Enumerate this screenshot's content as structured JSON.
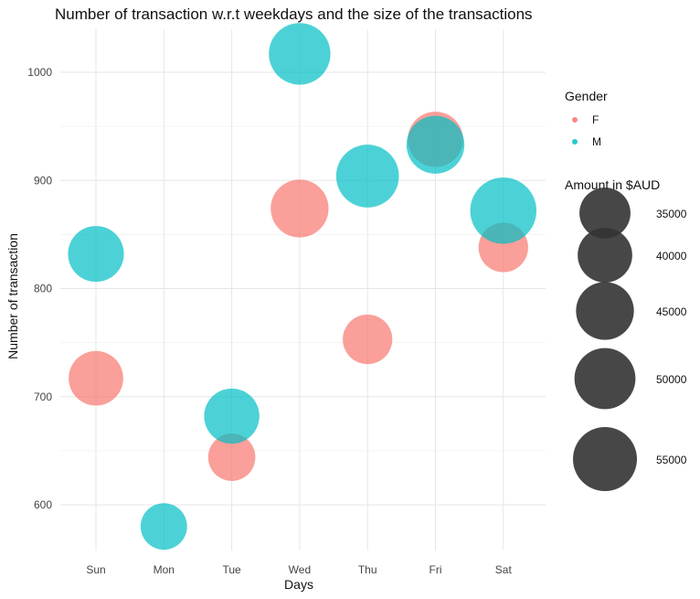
{
  "chart_data": {
    "type": "scatter",
    "title": "Number of transaction w.r.t weekdays and the size of the transactions",
    "xlabel": "Days",
    "ylabel": "Number of transaction",
    "categories": [
      "Sun",
      "Mon",
      "Tue",
      "Wed",
      "Thu",
      "Fri",
      "Sat"
    ],
    "yticks": [
      600,
      700,
      800,
      900,
      1000
    ],
    "ylim": [
      553,
      1037
    ],
    "grid": true,
    "series": [
      {
        "name": "F",
        "color": "#F8766D",
        "points": [
          {
            "x": "Sun",
            "y": 717,
            "size": 40000
          },
          {
            "x": "Tue",
            "y": 644,
            "size": 30000
          },
          {
            "x": "Wed",
            "y": 874,
            "size": 45000
          },
          {
            "x": "Thu",
            "y": 753,
            "size": 33000
          },
          {
            "x": "Fri",
            "y": 938,
            "size": 41000
          },
          {
            "x": "Sat",
            "y": 838,
            "size": 33000
          }
        ]
      },
      {
        "name": "M",
        "color": "#00BFC4",
        "points": [
          {
            "x": "Sun",
            "y": 832,
            "size": 42000
          },
          {
            "x": "Mon",
            "y": 580,
            "size": 29000
          },
          {
            "x": "Tue",
            "y": 682,
            "size": 41000
          },
          {
            "x": "Wed",
            "y": 1017,
            "size": 51000
          },
          {
            "x": "Thu",
            "y": 904,
            "size": 53000
          },
          {
            "x": "Fri",
            "y": 933,
            "size": 45000
          },
          {
            "x": "Sat",
            "y": 872,
            "size": 59000
          }
        ]
      }
    ],
    "legend": {
      "placement": "right",
      "color_title": "Gender",
      "color_entries": [
        "F",
        "M"
      ],
      "size_title": "Amount in $AUD",
      "size_entries": [
        35000,
        40000,
        45000,
        50000,
        55000
      ],
      "size_labels": [
        "35000",
        "40000",
        "45000",
        "50000",
        "55000"
      ]
    }
  }
}
